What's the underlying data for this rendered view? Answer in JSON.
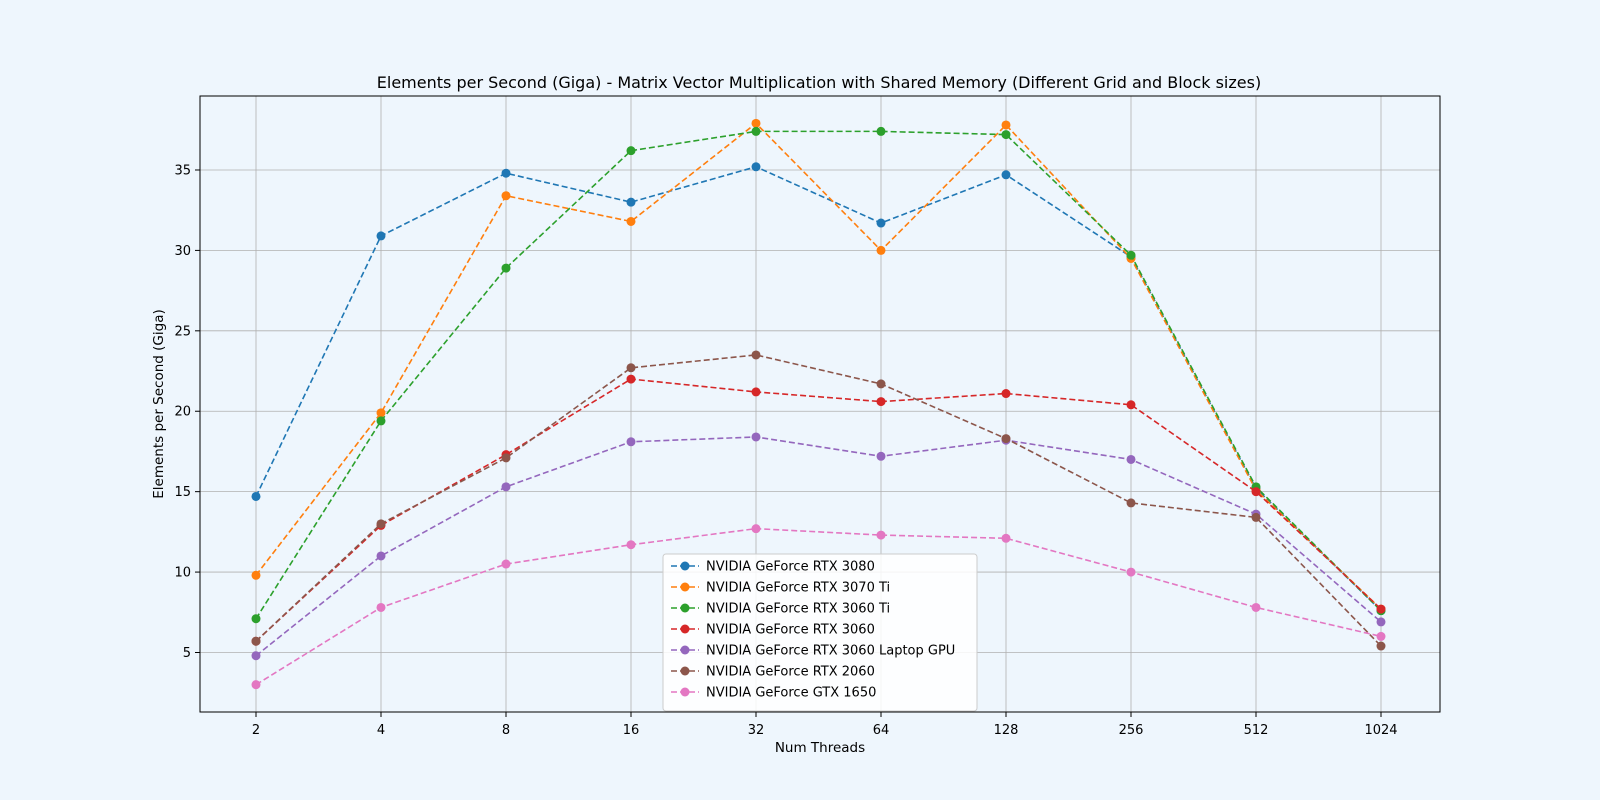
{
  "chart_data": {
    "type": "line",
    "title": "Elements per Second (Giga) - Matrix Vector Multiplication with Shared Memory (Different Grid and Block sizes)",
    "xlabel": "Num Threads",
    "ylabel": "Elements per Second (Giga)",
    "categories": [
      "2",
      "4",
      "8",
      "16",
      "32",
      "64",
      "128",
      "256",
      "512",
      "1024"
    ],
    "yticks": [
      5,
      10,
      15,
      20,
      25,
      30,
      35
    ],
    "ylim": [
      1.3,
      39.6
    ],
    "grid": true,
    "legend_position": "lower-center",
    "line_style": "dashed",
    "marker": "circle",
    "series": [
      {
        "name": "NVIDIA GeForce RTX 3080",
        "color": "#1f77b4",
        "values": [
          14.7,
          30.9,
          34.8,
          33.0,
          35.2,
          31.7,
          34.7,
          29.6,
          15.2,
          7.6
        ]
      },
      {
        "name": "NVIDIA GeForce RTX 3070 Ti",
        "color": "#ff7f0e",
        "values": [
          9.8,
          19.9,
          33.4,
          31.8,
          37.9,
          30.0,
          37.8,
          29.5,
          15.1,
          7.7
        ]
      },
      {
        "name": "NVIDIA GeForce RTX 3060 Ti",
        "color": "#2ca02c",
        "values": [
          7.1,
          19.4,
          28.9,
          36.2,
          37.4,
          37.4,
          37.2,
          29.7,
          15.3,
          7.6
        ]
      },
      {
        "name": "NVIDIA GeForce RTX 3060",
        "color": "#d62728",
        "values": [
          5.7,
          12.9,
          17.3,
          22.0,
          21.2,
          20.6,
          21.1,
          20.4,
          15.0,
          7.7
        ]
      },
      {
        "name": "NVIDIA GeForce RTX 3060 Laptop GPU",
        "color": "#9467bd",
        "values": [
          4.8,
          11.0,
          15.3,
          18.1,
          18.4,
          17.2,
          18.2,
          17.0,
          13.6,
          6.9
        ]
      },
      {
        "name": "NVIDIA GeForce RTX 2060",
        "color": "#8c564b",
        "values": [
          5.7,
          13.0,
          17.1,
          22.7,
          23.5,
          21.7,
          18.3,
          14.3,
          13.4,
          5.4
        ]
      },
      {
        "name": "NVIDIA GeForce GTX 1650",
        "color": "#e377c2",
        "values": [
          3.0,
          7.8,
          10.5,
          11.7,
          12.7,
          12.3,
          12.1,
          10.0,
          7.8,
          6.0
        ]
      }
    ]
  }
}
